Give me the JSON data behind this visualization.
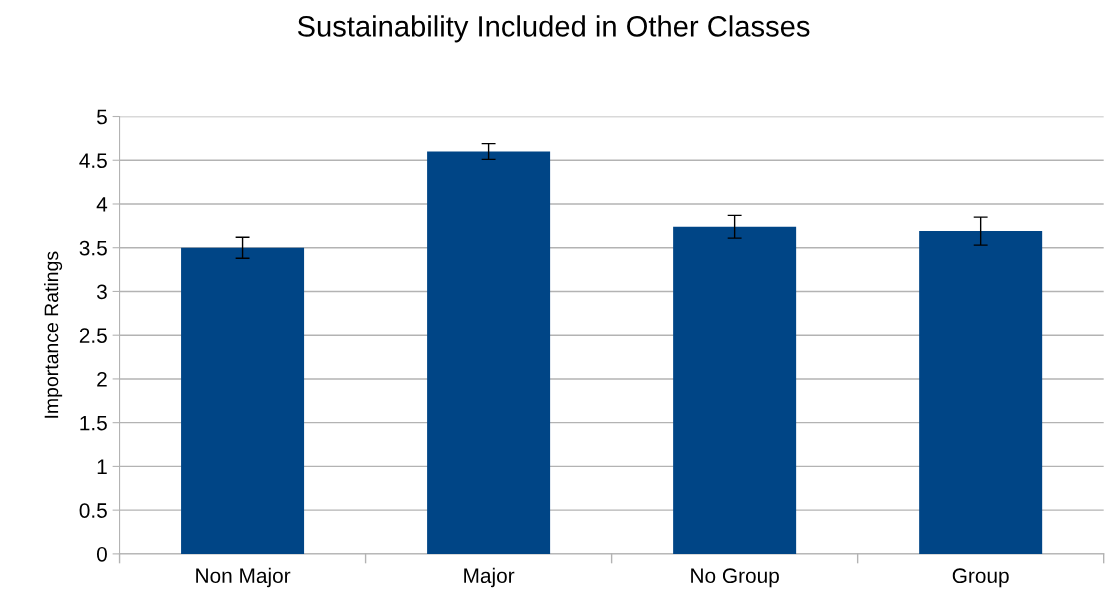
{
  "chart_data": {
    "type": "bar",
    "title": "Sustainability Included in Other Classes",
    "ylabel": "Importance Ratings",
    "categories": [
      "Non Major",
      "Major",
      "No Group",
      "Group"
    ],
    "values": [
      3.5,
      4.6,
      3.74,
      3.69
    ],
    "errors": [
      0.12,
      0.09,
      0.13,
      0.16
    ],
    "color": "#004586",
    "ylim": [
      0,
      5
    ],
    "yticks": [
      0,
      0.5,
      1,
      1.5,
      2,
      2.5,
      3,
      3.5,
      4,
      4.5,
      5
    ],
    "grid": "y",
    "legend": false
  }
}
